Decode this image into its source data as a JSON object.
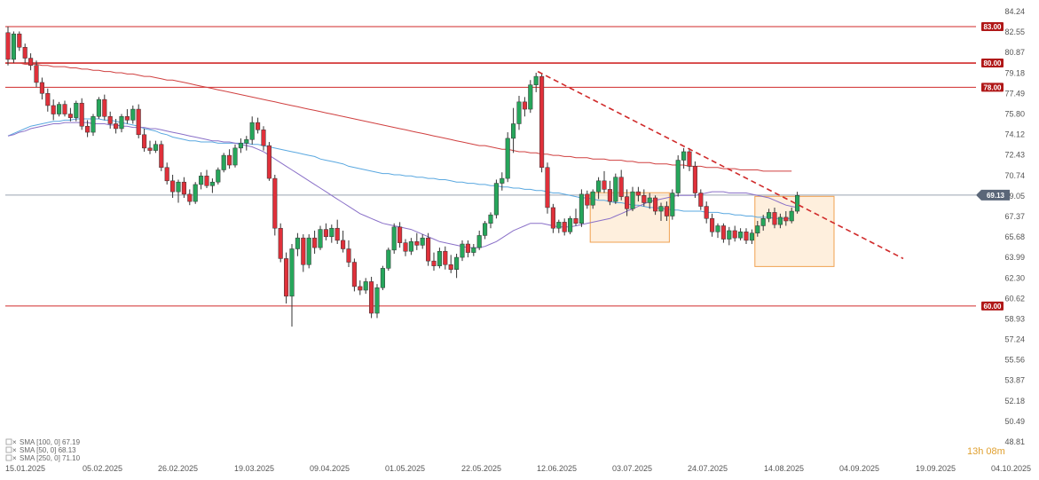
{
  "chart_data": {
    "type": "candlestick",
    "title": "",
    "ylim": [
      48.81,
      84.24
    ],
    "y_ticks": [
      "84.24",
      "82.55",
      "80.87",
      "79.18",
      "77.49",
      "75.80",
      "74.12",
      "72.43",
      "70.74",
      "69.05",
      "67.37",
      "65.68",
      "63.99",
      "62.30",
      "60.62",
      "58.93",
      "57.24",
      "55.56",
      "53.87",
      "52.18",
      "50.49",
      "48.81"
    ],
    "x_ticks": [
      "15.01.2025",
      "05.02.2025",
      "26.02.2025",
      "19.03.2025",
      "09.04.2025",
      "01.05.2025",
      "22.05.2025",
      "12.06.2025",
      "03.07.2025",
      "24.07.2025",
      "14.08.2025",
      "04.09.2025",
      "19.09.2025",
      "04.10.2025"
    ],
    "current_price": "69.13",
    "levels": [
      {
        "label": "83.00",
        "value": 83.0
      },
      {
        "label": "80.00",
        "value": 80.0
      },
      {
        "label": "78.00",
        "value": 78.0
      },
      {
        "label": "60.00",
        "value": 60.0
      }
    ],
    "sma_legend": [
      "SMA [100, 0] 67.19",
      "SMA [50, 0] 68.13",
      "SMA [250, 0] 71.10"
    ],
    "timer": "13h 08m",
    "candles": [
      [
        82.5,
        83.0,
        79.8,
        80.3
      ],
      [
        80.3,
        82.6,
        80.0,
        82.4
      ],
      [
        82.4,
        82.6,
        81.0,
        81.3
      ],
      [
        81.3,
        81.6,
        80.0,
        80.4
      ],
      [
        80.4,
        80.8,
        79.4,
        79.8
      ],
      [
        79.8,
        80.2,
        78.0,
        78.4
      ],
      [
        78.4,
        78.8,
        77.0,
        77.5
      ],
      [
        77.5,
        77.9,
        76.0,
        76.5
      ],
      [
        76.5,
        77.0,
        75.3,
        75.8
      ],
      [
        75.8,
        76.8,
        75.6,
        76.6
      ],
      [
        76.6,
        76.9,
        75.6,
        75.8
      ],
      [
        75.8,
        76.3,
        75.2,
        75.5
      ],
      [
        75.5,
        76.9,
        75.2,
        76.7
      ],
      [
        76.7,
        77.1,
        74.5,
        74.8
      ],
      [
        74.8,
        75.3,
        73.9,
        74.3
      ],
      [
        74.3,
        75.8,
        74.0,
        75.6
      ],
      [
        75.6,
        77.2,
        75.4,
        77.0
      ],
      [
        77.0,
        77.4,
        75.3,
        75.6
      ],
      [
        75.6,
        76.0,
        74.6,
        75.0
      ],
      [
        75.0,
        75.4,
        74.2,
        74.6
      ],
      [
        74.6,
        75.8,
        74.3,
        75.6
      ],
      [
        75.6,
        76.2,
        75.0,
        75.3
      ],
      [
        75.3,
        76.5,
        75.0,
        76.2
      ],
      [
        76.2,
        76.6,
        73.8,
        74.1
      ],
      [
        74.1,
        74.6,
        72.7,
        73.0
      ],
      [
        73.0,
        73.6,
        72.5,
        72.8
      ],
      [
        72.8,
        73.6,
        72.6,
        73.3
      ],
      [
        73.3,
        73.6,
        71.1,
        71.4
      ],
      [
        71.4,
        71.8,
        70.0,
        70.3
      ],
      [
        70.3,
        70.8,
        68.9,
        69.4
      ],
      [
        69.4,
        70.4,
        68.5,
        70.2
      ],
      [
        70.2,
        70.6,
        68.9,
        69.2
      ],
      [
        69.2,
        69.6,
        68.3,
        68.6
      ],
      [
        68.6,
        70.2,
        68.4,
        70.0
      ],
      [
        70.0,
        71.0,
        69.6,
        70.7
      ],
      [
        70.7,
        71.2,
        69.7,
        69.9
      ],
      [
        69.9,
        70.5,
        69.3,
        70.2
      ],
      [
        70.2,
        71.4,
        70.0,
        71.2
      ],
      [
        71.2,
        72.6,
        71.0,
        72.4
      ],
      [
        72.4,
        72.9,
        71.3,
        71.6
      ],
      [
        71.6,
        73.3,
        71.4,
        73.0
      ],
      [
        73.0,
        73.8,
        72.6,
        73.4
      ],
      [
        73.4,
        74.0,
        72.8,
        73.7
      ],
      [
        73.7,
        75.6,
        73.3,
        75.1
      ],
      [
        75.1,
        75.5,
        74.2,
        74.5
      ],
      [
        74.5,
        74.8,
        72.8,
        73.2
      ],
      [
        73.2,
        73.5,
        70.3,
        70.5
      ],
      [
        70.5,
        70.8,
        65.8,
        66.4
      ],
      [
        66.4,
        66.8,
        63.6,
        63.9
      ],
      [
        63.9,
        64.4,
        60.2,
        60.8
      ],
      [
        60.8,
        65.1,
        58.3,
        64.7
      ],
      [
        64.7,
        66.0,
        64.1,
        65.6
      ],
      [
        65.6,
        65.9,
        62.8,
        63.4
      ],
      [
        63.4,
        65.9,
        63.1,
        65.6
      ],
      [
        65.6,
        66.2,
        64.3,
        64.8
      ],
      [
        64.8,
        66.6,
        64.6,
        66.3
      ],
      [
        66.3,
        66.8,
        65.4,
        65.7
      ],
      [
        65.7,
        66.7,
        65.2,
        66.4
      ],
      [
        66.4,
        67.1,
        65.1,
        65.4
      ],
      [
        65.4,
        66.2,
        64.4,
        64.7
      ],
      [
        64.7,
        65.4,
        63.2,
        63.6
      ],
      [
        63.6,
        63.9,
        61.2,
        61.6
      ],
      [
        61.6,
        62.1,
        60.9,
        61.3
      ],
      [
        61.3,
        62.3,
        61.0,
        62.0
      ],
      [
        62.0,
        62.4,
        59.0,
        59.4
      ],
      [
        59.4,
        61.8,
        59.0,
        61.5
      ],
      [
        61.5,
        63.3,
        61.3,
        63.1
      ],
      [
        63.1,
        64.8,
        62.9,
        64.6
      ],
      [
        64.6,
        66.8,
        64.3,
        66.5
      ],
      [
        66.5,
        66.9,
        64.8,
        65.2
      ],
      [
        65.2,
        65.5,
        64.1,
        64.5
      ],
      [
        64.5,
        65.6,
        64.2,
        65.3
      ],
      [
        65.3,
        66.0,
        64.6,
        65.0
      ],
      [
        65.0,
        65.9,
        64.7,
        65.6
      ],
      [
        65.6,
        66.0,
        63.3,
        63.7
      ],
      [
        63.7,
        64.4,
        62.9,
        63.3
      ],
      [
        63.3,
        64.8,
        63.1,
        64.5
      ],
      [
        64.5,
        64.9,
        63.0,
        63.4
      ],
      [
        63.4,
        64.2,
        62.7,
        63.0
      ],
      [
        63.0,
        64.3,
        62.3,
        64.0
      ],
      [
        64.0,
        65.4,
        63.7,
        65.1
      ],
      [
        65.1,
        65.4,
        64.0,
        64.4
      ],
      [
        64.4,
        65.1,
        64.1,
        64.8
      ],
      [
        64.8,
        66.2,
        64.6,
        65.8
      ],
      [
        65.8,
        67.0,
        65.5,
        66.8
      ],
      [
        66.8,
        67.7,
        66.4,
        67.5
      ],
      [
        67.5,
        70.4,
        67.2,
        70.1
      ],
      [
        70.1,
        71.0,
        69.5,
        70.5
      ],
      [
        70.5,
        74.3,
        70.2,
        73.8
      ],
      [
        73.8,
        76.3,
        72.6,
        75.0
      ],
      [
        75.0,
        77.3,
        74.5,
        76.8
      ],
      [
        76.8,
        77.2,
        75.6,
        76.2
      ],
      [
        76.2,
        78.6,
        75.9,
        78.2
      ],
      [
        78.2,
        79.2,
        77.6,
        78.9
      ],
      [
        78.9,
        79.1,
        71.0,
        71.4
      ],
      [
        71.4,
        71.8,
        67.6,
        68.1
      ],
      [
        68.1,
        68.4,
        66.0,
        66.4
      ],
      [
        66.4,
        67.1,
        66.0,
        66.9
      ],
      [
        66.9,
        67.2,
        65.8,
        66.1
      ],
      [
        66.1,
        67.4,
        65.9,
        67.2
      ],
      [
        67.2,
        68.0,
        66.6,
        66.8
      ],
      [
        66.8,
        69.6,
        66.5,
        69.2
      ],
      [
        69.2,
        69.5,
        68.0,
        68.3
      ],
      [
        68.3,
        69.6,
        68.0,
        69.4
      ],
      [
        69.4,
        70.6,
        68.8,
        70.3
      ],
      [
        70.3,
        71.1,
        69.3,
        69.6
      ],
      [
        69.6,
        70.3,
        68.3,
        68.6
      ],
      [
        68.6,
        70.9,
        68.4,
        70.6
      ],
      [
        70.6,
        71.2,
        68.7,
        69.0
      ],
      [
        69.0,
        69.6,
        67.4,
        68.0
      ],
      [
        68.0,
        69.8,
        67.8,
        69.4
      ],
      [
        69.4,
        69.8,
        68.6,
        69.1
      ],
      [
        69.1,
        69.6,
        68.2,
        68.5
      ],
      [
        68.5,
        69.3,
        68.0,
        68.9
      ],
      [
        68.9,
        69.1,
        67.5,
        67.8
      ],
      [
        67.8,
        68.5,
        67.0,
        68.2
      ],
      [
        68.2,
        68.6,
        67.0,
        67.4
      ],
      [
        67.4,
        69.6,
        67.1,
        69.3
      ],
      [
        69.3,
        72.4,
        69.0,
        72.0
      ],
      [
        72.0,
        73.0,
        71.3,
        72.7
      ],
      [
        72.7,
        73.0,
        71.1,
        71.5
      ],
      [
        71.5,
        71.9,
        68.9,
        69.3
      ],
      [
        69.3,
        69.6,
        67.9,
        68.2
      ],
      [
        68.2,
        68.6,
        66.8,
        67.2
      ],
      [
        67.2,
        67.6,
        65.7,
        66.1
      ],
      [
        66.1,
        66.8,
        65.6,
        66.6
      ],
      [
        66.6,
        66.8,
        65.2,
        65.5
      ],
      [
        65.5,
        66.5,
        65.0,
        66.2
      ],
      [
        66.2,
        66.6,
        65.3,
        65.6
      ],
      [
        65.6,
        66.4,
        65.4,
        66.1
      ],
      [
        66.1,
        66.4,
        65.1,
        65.4
      ],
      [
        65.4,
        66.3,
        65.1,
        66.0
      ],
      [
        66.0,
        67.0,
        65.7,
        66.6
      ],
      [
        66.6,
        67.5,
        66.2,
        67.2
      ],
      [
        67.2,
        68.0,
        66.9,
        67.7
      ],
      [
        67.7,
        68.1,
        66.4,
        66.7
      ],
      [
        66.7,
        67.6,
        66.4,
        67.3
      ],
      [
        67.3,
        67.8,
        66.6,
        67.0
      ],
      [
        67.0,
        68.1,
        66.8,
        67.8
      ],
      [
        67.8,
        69.4,
        67.6,
        69.1
      ]
    ],
    "sma_100": [
      74.0,
      74.2,
      74.4,
      74.6,
      74.8,
      74.9,
      75.0,
      75.1,
      75.2,
      75.2,
      75.3,
      75.3,
      75.4,
      75.4,
      75.4,
      75.4,
      75.4,
      75.3,
      75.3,
      75.2,
      75.1,
      75.0,
      74.9,
      74.8,
      74.6,
      74.5,
      74.4,
      74.2,
      74.1,
      73.9,
      73.8,
      73.7,
      73.6,
      73.6,
      73.5,
      73.5,
      73.5,
      73.4,
      73.4,
      73.4,
      73.4,
      73.4,
      73.4,
      73.3,
      73.3,
      73.2,
      73.1,
      73.0,
      72.9,
      72.8,
      72.7,
      72.6,
      72.5,
      72.4,
      72.3,
      72.1,
      72.0,
      71.9,
      71.8,
      71.7,
      71.5,
      71.4,
      71.3,
      71.2,
      71.1,
      71.0,
      70.9,
      70.9,
      70.8,
      70.8,
      70.7,
      70.7,
      70.6,
      70.6,
      70.5,
      70.5,
      70.4,
      70.4,
      70.3,
      70.2,
      70.2,
      70.1,
      70.1,
      70.0,
      70.0,
      69.9,
      69.9,
      69.8,
      69.8,
      69.7,
      69.7,
      69.6,
      69.6,
      69.5,
      69.5,
      69.4,
      69.3,
      69.3,
      69.2,
      69.1,
      69.0,
      68.9,
      68.9,
      68.8,
      68.7,
      68.7,
      68.6,
      68.5,
      68.5,
      68.4,
      68.3,
      68.3,
      68.2,
      68.1,
      68.1,
      68.0,
      68.0,
      67.9,
      67.9,
      67.8,
      67.8,
      67.8,
      67.8,
      67.7,
      67.7,
      67.7,
      67.6,
      67.6,
      67.5,
      67.5,
      67.4,
      67.4,
      67.3,
      67.3,
      67.3,
      67.2,
      67.2,
      67.2,
      67.2
    ],
    "sma_50": [
      74.0,
      74.1,
      74.3,
      74.4,
      74.6,
      74.7,
      74.8,
      74.9,
      75.0,
      75.0,
      75.1,
      75.1,
      75.1,
      75.1,
      75.1,
      75.0,
      75.0,
      75.0,
      74.9,
      74.9,
      74.8,
      74.8,
      74.7,
      74.7,
      74.7,
      74.6,
      74.6,
      74.5,
      74.4,
      74.3,
      74.2,
      74.1,
      74.0,
      73.9,
      73.8,
      73.7,
      73.6,
      73.6,
      73.5,
      73.5,
      73.4,
      73.3,
      73.2,
      73.1,
      72.9,
      72.7,
      72.4,
      72.1,
      71.8,
      71.5,
      71.2,
      70.9,
      70.6,
      70.3,
      70.0,
      69.7,
      69.4,
      69.1,
      68.8,
      68.5,
      68.2,
      67.9,
      67.6,
      67.4,
      67.2,
      67.0,
      66.8,
      66.7,
      66.6,
      66.5,
      66.4,
      66.3,
      66.1,
      65.9,
      65.7,
      65.5,
      65.3,
      65.2,
      65.1,
      65.0,
      64.9,
      64.8,
      64.8,
      64.8,
      64.9,
      65.1,
      65.3,
      65.6,
      65.9,
      66.2,
      66.4,
      66.6,
      66.8,
      66.8,
      66.8,
      66.7,
      66.6,
      66.5,
      66.5,
      66.5,
      66.6,
      66.7,
      66.8,
      66.9,
      67.0,
      67.1,
      67.2,
      67.4,
      67.6,
      67.8,
      68.0,
      68.2,
      68.4,
      68.6,
      68.7,
      68.8,
      68.9,
      69.0,
      69.1,
      69.1,
      69.1,
      69.1,
      69.2,
      69.3,
      69.4,
      69.4,
      69.4,
      69.3,
      69.3,
      69.3,
      69.3,
      69.2,
      69.1,
      69.0,
      68.9,
      68.7,
      68.5,
      68.3,
      68.2,
      68.1
    ],
    "sma_250": [
      80.0,
      80.0,
      80.0,
      79.9,
      79.9,
      79.9,
      79.8,
      79.8,
      79.7,
      79.7,
      79.7,
      79.6,
      79.6,
      79.5,
      79.5,
      79.4,
      79.4,
      79.3,
      79.3,
      79.2,
      79.2,
      79.1,
      79.1,
      79.0,
      78.9,
      78.9,
      78.8,
      78.7,
      78.6,
      78.6,
      78.5,
      78.4,
      78.3,
      78.2,
      78.1,
      78.0,
      77.9,
      77.8,
      77.7,
      77.6,
      77.5,
      77.4,
      77.3,
      77.2,
      77.1,
      77.0,
      76.9,
      76.8,
      76.7,
      76.6,
      76.5,
      76.4,
      76.3,
      76.2,
      76.1,
      76.0,
      75.9,
      75.8,
      75.7,
      75.6,
      75.5,
      75.4,
      75.3,
      75.2,
      75.1,
      75.0,
      74.9,
      74.8,
      74.7,
      74.6,
      74.5,
      74.4,
      74.3,
      74.2,
      74.1,
      74.0,
      73.9,
      73.8,
      73.7,
      73.6,
      73.5,
      73.4,
      73.3,
      73.2,
      73.2,
      73.1,
      73.0,
      72.9,
      72.9,
      72.8,
      72.7,
      72.7,
      72.6,
      72.6,
      72.5,
      72.5,
      72.4,
      72.4,
      72.3,
      72.3,
      72.2,
      72.2,
      72.2,
      72.1,
      72.1,
      72.1,
      72.0,
      72.0,
      72.0,
      71.9,
      71.9,
      71.8,
      71.8,
      71.8,
      71.7,
      71.7,
      71.7,
      71.6,
      71.6,
      71.6,
      71.5,
      71.5,
      71.5,
      71.4,
      71.4,
      71.4,
      71.3,
      71.3,
      71.3,
      71.2,
      71.2,
      71.2,
      71.2,
      71.1,
      71.1,
      71.1,
      71.1,
      71.1,
      71.1
    ]
  }
}
